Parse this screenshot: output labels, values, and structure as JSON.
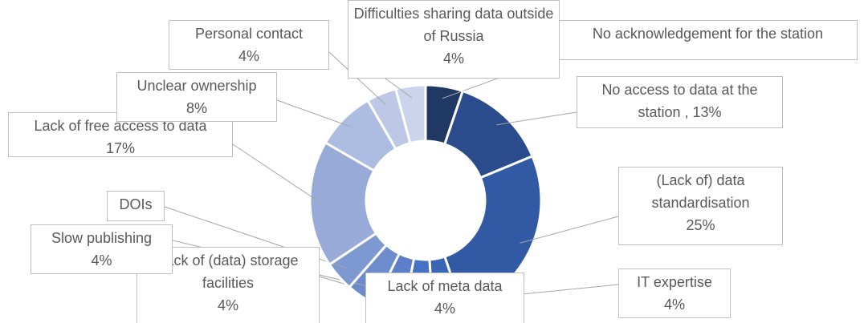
{
  "chart_data": {
    "type": "donut",
    "categories": [
      "No acknowledgement for the station",
      "No access to data at the station ,",
      "(Lack of) data standardisation",
      "IT expertise",
      "Lack of meta data",
      "Lack of (data) storage facilities",
      "Slow publishing",
      "DOIs",
      "Lack of free access to data",
      "Unclear ownership",
      "Personal contact",
      "Difficulties sharing data outside of Russia"
    ],
    "values": [
      5,
      13,
      25,
      4,
      4,
      4,
      4,
      4,
      17,
      8,
      4,
      4
    ],
    "value_labels": [
      null,
      "13%",
      "25%",
      "4%",
      "4%",
      "4%",
      "4%",
      "4%",
      "17%",
      "8%",
      "4%",
      "4%"
    ],
    "colors": [
      "#203864",
      "#2b4c8c",
      "#3259a3",
      "#3a64b5",
      "#4472c4",
      "#5b7fc8",
      "#6d8ccd",
      "#7e99d2",
      "#97aad8",
      "#adbde1",
      "#bcc8e6",
      "#cbd4eb"
    ]
  }
}
